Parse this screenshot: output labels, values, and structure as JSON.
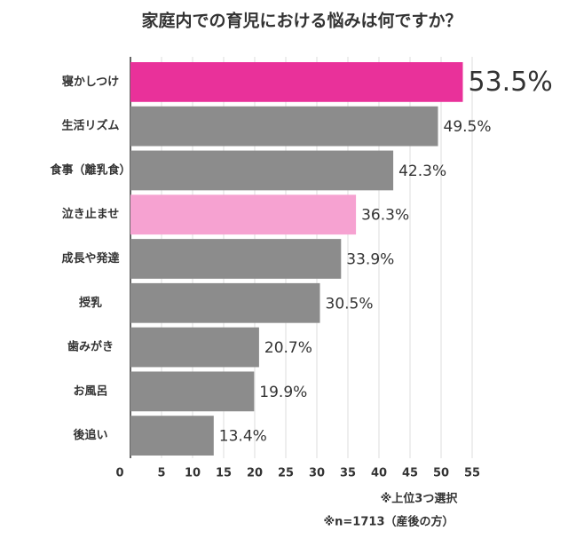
{
  "chart_data": {
    "type": "hbar",
    "title": "家庭内での育児における悩みは何ですか？",
    "categories": [
      "寝かしつけ",
      "生活リズム",
      "食事（離乳食）",
      "泣き止ませ",
      "成長や発達",
      "授乳",
      "歯みがき",
      "お風呂",
      "後追い"
    ],
    "values": [
      53.5,
      49.5,
      42.3,
      36.3,
      33.9,
      30.5,
      20.7,
      19.9,
      13.4
    ],
    "value_labels": [
      "53.5%",
      "49.5%",
      "42.3%",
      "36.3%",
      "33.9%",
      "30.5%",
      "20.7%",
      "19.9%",
      "13.4%"
    ],
    "colors": [
      "#e9319a",
      "#8c8c8c",
      "#8c8c8c",
      "#f6a2d1",
      "#8c8c8c",
      "#8c8c8c",
      "#8c8c8c",
      "#8c8c8c",
      "#8c8c8c"
    ],
    "value_label_colors": [
      "#e9319a",
      "#333333",
      "#333333",
      "#e9319a",
      "#333333",
      "#333333",
      "#333333",
      "#333333",
      "#333333"
    ],
    "xlim": [
      0,
      55
    ],
    "xticks": [
      0,
      5,
      10,
      15,
      20,
      25,
      30,
      35,
      40,
      45,
      50,
      55
    ],
    "grid": true,
    "notes": [
      "※上位3つ選択",
      "※n=1713（産後の方）"
    ]
  }
}
